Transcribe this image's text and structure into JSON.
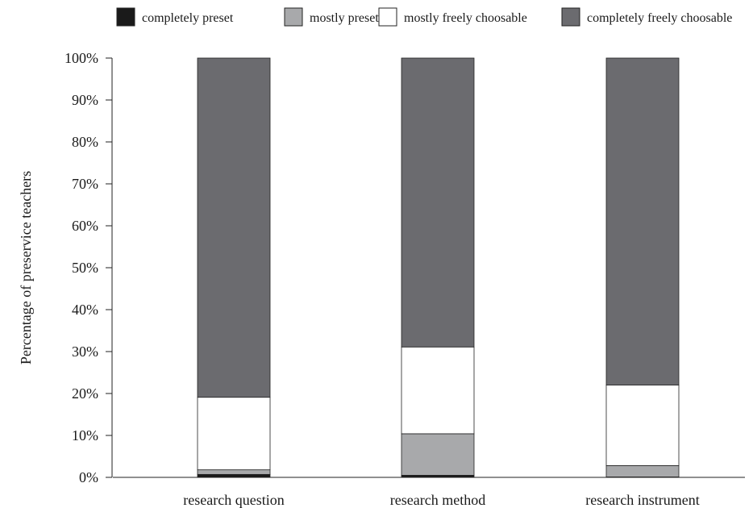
{
  "chart_data": {
    "type": "bar",
    "stacked": true,
    "categories": [
      "research question",
      "research method",
      "research instrument"
    ],
    "series": [
      {
        "name": "completely preset",
        "color": "#1a1a1a",
        "values": [
          0.7,
          0.5,
          0.1
        ]
      },
      {
        "name": "mostly preset",
        "color": "#a8a9ab",
        "values": [
          1.1,
          9.9,
          2.7
        ]
      },
      {
        "name": "mostly freely choosable",
        "color": "#ffffff",
        "values": [
          17.3,
          20.7,
          19.2
        ]
      },
      {
        "name": "completely freely choosable",
        "color": "#6b6b6f",
        "values": [
          80.9,
          68.9,
          78.0
        ]
      }
    ],
    "ylabel": "Percentage of preservice teachers",
    "ylim": [
      0,
      100
    ],
    "yticks": [
      "0%",
      "10%",
      "20%",
      "30%",
      "40%",
      "50%",
      "60%",
      "70%",
      "80%",
      "90%",
      "100%"
    ],
    "legend_position": "top"
  }
}
